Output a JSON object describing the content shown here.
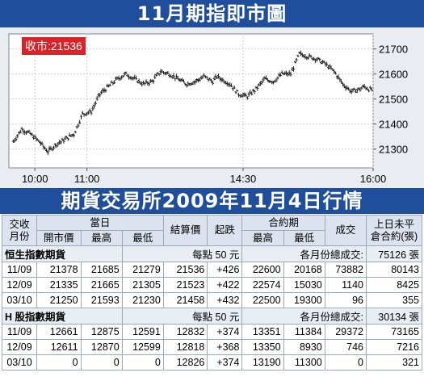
{
  "top_title": "11月期指即市圖",
  "close_label": "收市:21536",
  "table_title": "期貨交易所2009年11月4日行情",
  "chart_data": {
    "type": "line",
    "title": "11月期指即市圖",
    "annotation": "收市:21536",
    "x_ticks": [
      "10:00",
      "11:00",
      "14:30",
      "16:00"
    ],
    "y_ticks": [
      21300,
      21400,
      21500,
      21600,
      21700
    ],
    "ylim": [
      21225,
      21760
    ],
    "x_range_minutes": [
      0,
      420
    ],
    "x_tick_minutes": [
      30,
      90,
      270,
      420
    ],
    "style": "ohlc",
    "x": [
      5,
      15,
      25,
      35,
      45,
      55,
      65,
      75,
      80,
      85,
      95,
      105,
      115,
      125,
      135,
      145,
      155,
      165,
      175,
      185,
      195,
      205,
      215,
      225,
      235,
      240,
      245,
      255,
      265,
      275,
      285,
      295,
      305,
      315,
      325,
      335,
      345,
      355,
      365,
      375,
      385,
      395,
      405,
      410,
      415,
      420
    ],
    "values": [
      21330,
      21380,
      21360,
      21330,
      21290,
      21320,
      21340,
      21360,
      21400,
      21440,
      21450,
      21520,
      21550,
      21580,
      21600,
      21580,
      21560,
      21570,
      21610,
      21600,
      21580,
      21560,
      21570,
      21590,
      21570,
      21590,
      21580,
      21560,
      21520,
      21510,
      21540,
      21580,
      21570,
      21600,
      21600,
      21680,
      21670,
      21660,
      21640,
      21610,
      21560,
      21530,
      21540,
      21550,
      21540,
      21536
    ]
  },
  "table": {
    "headers": {
      "row_a": [
        "交收月份",
        "當日",
        "結算價",
        "起跌",
        "合約期",
        "成交",
        "上日未平倉合約(張)"
      ],
      "row_b": [
        "開市價",
        "最高",
        "最低",
        "最高",
        "最低"
      ]
    },
    "sections": [
      {
        "name": "恒生指數期貨",
        "unit": "每點 50 元",
        "total_label": "各月份總成交:",
        "total": "75126 張",
        "rows": [
          [
            "11/09",
            "21378",
            "21685",
            "21279",
            "21536",
            "+426",
            "22600",
            "20168",
            "73882",
            "80143"
          ],
          [
            "12/09",
            "21335",
            "21665",
            "21305",
            "21523",
            "+422",
            "22574",
            "15030",
            "1140",
            "8425"
          ],
          [
            "03/10",
            "21250",
            "21593",
            "21230",
            "21458",
            "+432",
            "22500",
            "19300",
            "96",
            "355"
          ]
        ]
      },
      {
        "name": "H 股指數期貨",
        "unit": "每點 50 元",
        "total_label": "各月份總成交:",
        "total": "30134 張",
        "rows": [
          [
            "11/09",
            "12661",
            "12875",
            "12591",
            "12832",
            "+374",
            "13351",
            "11384",
            "29372",
            "73165"
          ],
          [
            "12/09",
            "12611",
            "12870",
            "12599",
            "12818",
            "+368",
            "13350",
            "8930",
            "746",
            "7216"
          ],
          [
            "03/10",
            "0",
            "0",
            "0",
            "12826",
            "+374",
            "13190",
            "11300",
            "0",
            "321"
          ]
        ]
      }
    ]
  },
  "colors": {
    "banner": "#1f4e9c",
    "label_bg": "#d8232a",
    "plot_bg": "#ffffff",
    "frame_bg": "#e9ecf0"
  }
}
